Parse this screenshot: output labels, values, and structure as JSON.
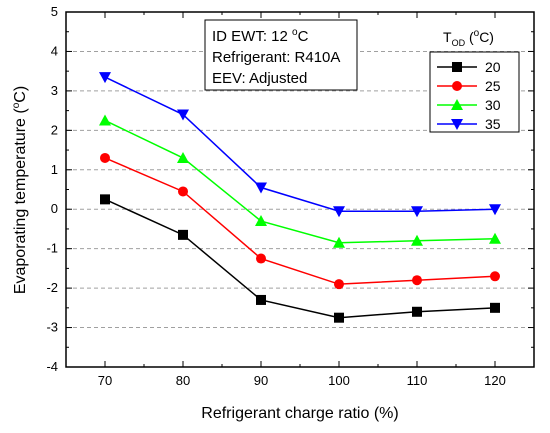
{
  "chart_data": {
    "type": "line",
    "xlabel": "Refrigerant charge ratio (%)",
    "ylabel_main": "Evaporating temperature (",
    "ylabel_sup": "o",
    "ylabel_end": "C)",
    "x": [
      70,
      80,
      90,
      100,
      110,
      120
    ],
    "xlim": [
      65,
      125
    ],
    "ylim": [
      -4,
      5
    ],
    "xticks": [
      70,
      80,
      90,
      100,
      110,
      120
    ],
    "yticks": [
      -4,
      -3,
      -2,
      -1,
      0,
      1,
      2,
      3,
      4,
      5
    ],
    "grid": "horizontal dashed",
    "annotation": {
      "line1_pre": "ID EWT: 12 ",
      "line1_sup": "o",
      "line1_post": "C",
      "line2": "Refrigerant: R410A",
      "line3": "EEV: Adjusted"
    },
    "legend": {
      "title_main": "T",
      "title_sub": "OD",
      "title_mid": " (",
      "title_sup": "o",
      "title_end": "C)",
      "placement": "top-right"
    },
    "series": [
      {
        "name": "20",
        "color": "#000000",
        "marker": "square",
        "values": [
          0.25,
          -0.65,
          -2.3,
          -2.75,
          -2.6,
          -2.5
        ]
      },
      {
        "name": "25",
        "color": "#ff0000",
        "marker": "circle",
        "values": [
          1.3,
          0.45,
          -1.25,
          -1.9,
          -1.8,
          -1.7
        ]
      },
      {
        "name": "30",
        "color": "#00ff00",
        "marker": "triangle-up",
        "values": [
          2.25,
          1.3,
          -0.3,
          -0.85,
          -0.8,
          -0.75
        ]
      },
      {
        "name": "35",
        "color": "#0000ff",
        "marker": "triangle-down",
        "values": [
          3.35,
          2.4,
          0.55,
          -0.05,
          -0.05,
          0.0
        ]
      }
    ]
  }
}
